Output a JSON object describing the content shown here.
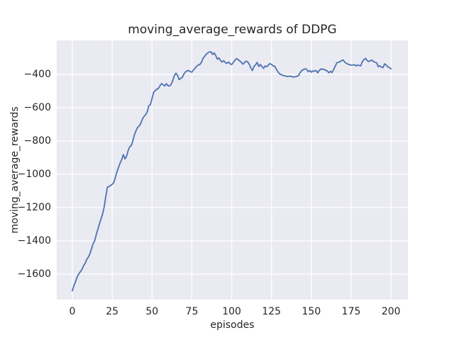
{
  "chart_data": {
    "type": "line",
    "title": "moving_average_rewards of DDPG",
    "xlabel": "episodes",
    "ylabel": "moving_average_rewards",
    "x_ticks": [
      0,
      25,
      50,
      75,
      100,
      125,
      150,
      175,
      200
    ],
    "x_tick_labels": [
      "0",
      "25",
      "50",
      "75",
      "100",
      "125",
      "150",
      "175",
      "200"
    ],
    "y_ticks": [
      -400,
      -600,
      -800,
      -1000,
      -1200,
      -1400,
      -1600
    ],
    "y_tick_labels": [
      "−400",
      "−600",
      "−800",
      "−1000",
      "−1200",
      "−1400",
      "−1600"
    ],
    "xlim": [
      -9.8,
      210.6
    ],
    "ylim": [
      -1753,
      -196
    ],
    "grid": true,
    "legend_position": "none",
    "style": "seaborn-darkgrid",
    "colors": {
      "line": "#4c72b0",
      "plot_background": "#eaeaf2",
      "grid": "#ffffff",
      "text": "#262626",
      "figure_background": "#ffffff"
    },
    "series": [
      {
        "name": "DDPG moving average reward",
        "x_start": 0,
        "x_step": 1,
        "values": [
          -1700,
          -1668,
          -1645,
          -1618,
          -1598,
          -1586,
          -1572,
          -1550,
          -1536,
          -1512,
          -1498,
          -1478,
          -1448,
          -1418,
          -1400,
          -1362,
          -1330,
          -1298,
          -1268,
          -1238,
          -1195,
          -1132,
          -1078,
          -1073,
          -1068,
          -1060,
          -1050,
          -1018,
          -985,
          -958,
          -932,
          -912,
          -882,
          -908,
          -892,
          -858,
          -835,
          -828,
          -798,
          -762,
          -738,
          -718,
          -710,
          -692,
          -668,
          -652,
          -642,
          -625,
          -588,
          -582,
          -545,
          -508,
          -498,
          -490,
          -484,
          -468,
          -456,
          -462,
          -470,
          -456,
          -468,
          -470,
          -460,
          -438,
          -408,
          -393,
          -406,
          -432,
          -424,
          -418,
          -398,
          -386,
          -379,
          -377,
          -384,
          -387,
          -373,
          -364,
          -351,
          -344,
          -341,
          -328,
          -304,
          -293,
          -279,
          -271,
          -266,
          -264,
          -281,
          -271,
          -287,
          -309,
          -301,
          -317,
          -326,
          -318,
          -329,
          -334,
          -326,
          -337,
          -341,
          -329,
          -316,
          -306,
          -311,
          -319,
          -327,
          -339,
          -329,
          -321,
          -324,
          -339,
          -361,
          -377,
          -353,
          -343,
          -328,
          -353,
          -341,
          -354,
          -364,
          -350,
          -354,
          -344,
          -335,
          -341,
          -349,
          -351,
          -369,
          -384,
          -397,
          -401,
          -406,
          -408,
          -411,
          -413,
          -411,
          -412,
          -414,
          -417,
          -414,
          -412,
          -407,
          -389,
          -377,
          -371,
          -367,
          -369,
          -384,
          -377,
          -387,
          -379,
          -381,
          -377,
          -391,
          -377,
          -367,
          -371,
          -369,
          -377,
          -379,
          -391,
          -382,
          -389,
          -371,
          -351,
          -331,
          -327,
          -324,
          -317,
          -314,
          -327,
          -334,
          -339,
          -342,
          -345,
          -344,
          -342,
          -349,
          -344,
          -347,
          -349,
          -324,
          -311,
          -304,
          -317,
          -323,
          -319,
          -314,
          -323,
          -327,
          -331,
          -354,
          -349,
          -357,
          -359,
          -337,
          -344,
          -355,
          -359,
          -367
        ]
      }
    ]
  }
}
